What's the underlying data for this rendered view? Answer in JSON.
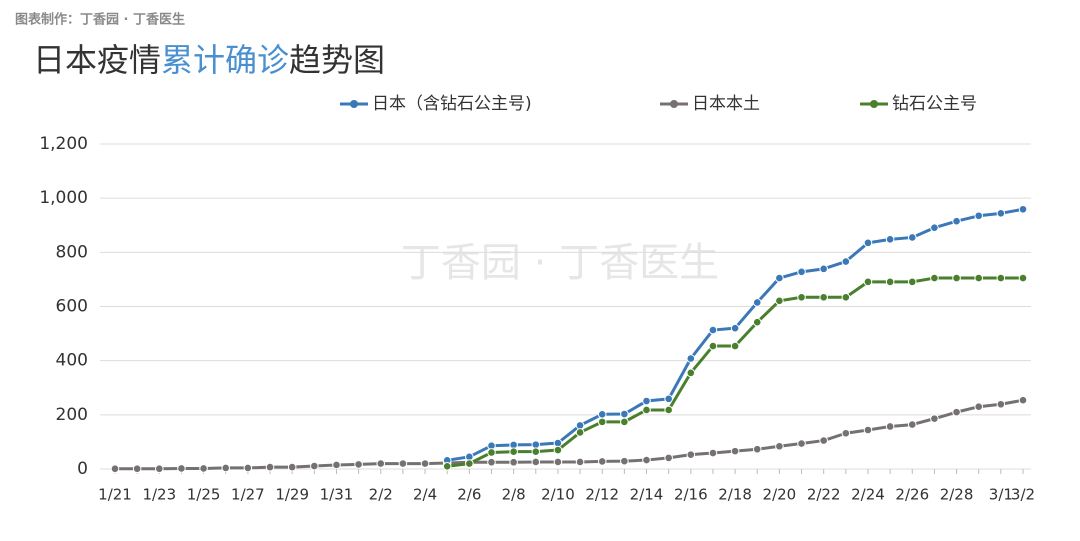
{
  "credit": "图表制作：丁香园 · 丁香医生",
  "watermark": "丁香园 · 丁香医生",
  "chart_data": {
    "type": "line",
    "title": [
      {
        "text": "日本疫情",
        "color": "#333333"
      },
      {
        "text": "累计确诊",
        "color": "#4a8fd0"
      },
      {
        "text": "趋势图",
        "color": "#333333"
      }
    ],
    "categories": [
      "1/21",
      null,
      "1/23",
      null,
      "1/25",
      null,
      "1/27",
      null,
      "1/29",
      null,
      "1/31",
      null,
      "2/2",
      null,
      "2/4",
      null,
      "2/6",
      null,
      "2/8",
      null,
      "2/10",
      null,
      "2/12",
      null,
      "2/14",
      null,
      "2/16",
      null,
      "2/18",
      null,
      "2/20",
      null,
      "2/22",
      null,
      "2/24",
      null,
      "2/26",
      null,
      "2/28",
      null,
      "3/1",
      "3/2"
    ],
    "series": [
      {
        "name": "日本（含钻石公主号)",
        "color": "#3a78b8",
        "values": [
          null,
          null,
          null,
          null,
          null,
          null,
          null,
          null,
          null,
          null,
          null,
          null,
          null,
          null,
          null,
          32,
          45,
          86,
          89,
          90,
          96,
          161,
          202,
          203,
          251,
          259,
          408,
          513,
          520,
          615,
          705,
          728,
          739,
          766,
          835,
          848,
          855,
          891,
          915,
          935,
          944,
          959
        ]
      },
      {
        "name": "日本本土",
        "color": "#767171",
        "values": [
          1,
          1,
          1,
          2,
          2,
          4,
          4,
          7,
          7,
          11,
          15,
          17,
          20,
          20,
          20,
          22,
          25,
          25,
          25,
          26,
          26,
          26,
          28,
          29,
          33,
          41,
          53,
          59,
          66,
          73,
          84,
          94,
          105,
          132,
          144,
          157,
          164,
          186,
          210,
          230,
          239,
          254
        ]
      },
      {
        "name": "钻石公主号",
        "color": "#4a7f2e",
        "values": [
          null,
          null,
          null,
          null,
          null,
          null,
          null,
          null,
          null,
          null,
          null,
          null,
          null,
          null,
          null,
          10,
          20,
          61,
          64,
          64,
          70,
          135,
          174,
          174,
          218,
          218,
          355,
          454,
          454,
          542,
          621,
          634,
          634,
          634,
          691,
          691,
          691,
          705,
          705,
          705,
          705,
          705
        ]
      }
    ],
    "ylim": [
      0,
      1200
    ],
    "yticks": [
      0,
      200,
      400,
      600,
      800,
      {
        "value": 1000,
        "label": "1,000"
      },
      {
        "value": 1200,
        "label": "1,200"
      }
    ],
    "grid": true,
    "legend": "top"
  }
}
